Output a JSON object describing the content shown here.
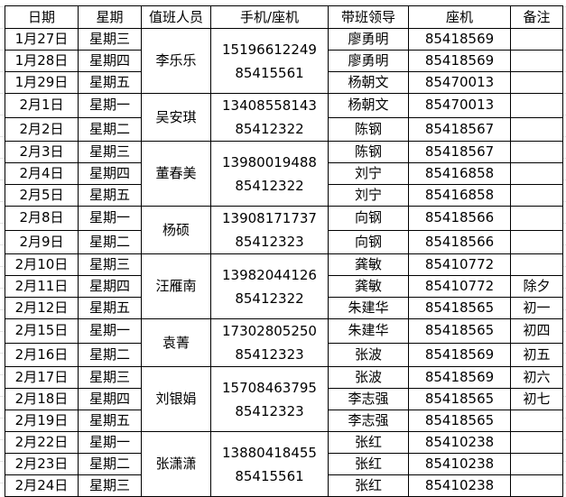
{
  "headers": [
    "日期",
    "星期",
    "值班人员",
    "手机/座机",
    "带班领导",
    "座机",
    "备注"
  ],
  "groups": [
    {
      "person": "李乐乐",
      "mobile": "15196612249",
      "landline": "85415561",
      "rows": [
        {
          "date": "1月27日",
          "weekday": "星期三",
          "leader": "廖勇明",
          "phone": "85418569",
          "note": ""
        },
        {
          "date": "1月28日",
          "weekday": "星期四",
          "leader": "廖勇明",
          "phone": "85418569",
          "note": ""
        },
        {
          "date": "1月29日",
          "weekday": "星期五",
          "leader": "杨朝文",
          "phone": "85470013",
          "note": ""
        }
      ]
    },
    {
      "person": "吴安琪",
      "mobile": "13408558143",
      "landline": "85412322",
      "rows": [
        {
          "date": "2月1日",
          "weekday": "星期一",
          "leader": "杨朝文",
          "phone": "85470013",
          "note": ""
        },
        {
          "date": "2月2日",
          "weekday": "星期二",
          "leader": "陈钢",
          "phone": "85418567",
          "note": ""
        }
      ]
    },
    {
      "person": "董春美",
      "mobile": "13980019488",
      "landline": "85412322",
      "rows": [
        {
          "date": "2月3日",
          "weekday": "星期三",
          "leader": "陈钢",
          "phone": "85418567",
          "note": ""
        },
        {
          "date": "2月4日",
          "weekday": "星期四",
          "leader": "刘宁",
          "phone": "85416858",
          "note": ""
        },
        {
          "date": "2月5日",
          "weekday": "星期五",
          "leader": "刘宁",
          "phone": "85416858",
          "note": ""
        }
      ]
    },
    {
      "person": "杨硕",
      "mobile": "13908171737",
      "landline": "85412323",
      "rows": [
        {
          "date": "2月8日",
          "weekday": "星期一",
          "leader": "向钢",
          "phone": "85418566",
          "note": ""
        },
        {
          "date": "2月9日",
          "weekday": "星期二",
          "leader": "向钢",
          "phone": "85418566",
          "note": ""
        }
      ]
    },
    {
      "person": "汪雁南",
      "mobile": "13982044126",
      "landline": "85412322",
      "rows": [
        {
          "date": "2月10日",
          "weekday": "星期三",
          "leader": "龚敏",
          "phone": "85410772",
          "note": ""
        },
        {
          "date": "2月11日",
          "weekday": "星期四",
          "leader": "龚敏",
          "phone": "85410772",
          "note": "除夕"
        },
        {
          "date": "2月12日",
          "weekday": "星期五",
          "leader": "朱建华",
          "phone": "85418565",
          "note": "初一"
        }
      ]
    },
    {
      "person": "袁菁",
      "mobile": "17302805250",
      "landline": "85412323",
      "rows": [
        {
          "date": "2月15日",
          "weekday": "星期一",
          "leader": "朱建华",
          "phone": "85418565",
          "note": "初四"
        },
        {
          "date": "2月16日",
          "weekday": "星期二",
          "leader": "张波",
          "phone": "85418569",
          "note": "初五"
        }
      ]
    },
    {
      "person": "刘银娟",
      "mobile": "15708463795",
      "landline": "85412323",
      "rows": [
        {
          "date": "2月17日",
          "weekday": "星期三",
          "leader": "张波",
          "phone": "85418569",
          "note": "初六"
        },
        {
          "date": "2月18日",
          "weekday": "星期四",
          "leader": "李志强",
          "phone": "85418565",
          "note": "初七"
        },
        {
          "date": "2月19日",
          "weekday": "星期五",
          "leader": "李志强",
          "phone": "85418565",
          "note": ""
        }
      ]
    },
    {
      "person": "张潇潇",
      "mobile": "13880418455",
      "landline": "85415561",
      "rows": [
        {
          "date": "2月22日",
          "weekday": "星期一",
          "leader": "张红",
          "phone": "85410238",
          "note": ""
        },
        {
          "date": "2月23日",
          "weekday": "星期二",
          "leader": "张红",
          "phone": "85410238",
          "note": ""
        },
        {
          "date": "2月24日",
          "weekday": "星期三",
          "leader": "张红",
          "phone": "85410238",
          "note": ""
        }
      ]
    }
  ]
}
